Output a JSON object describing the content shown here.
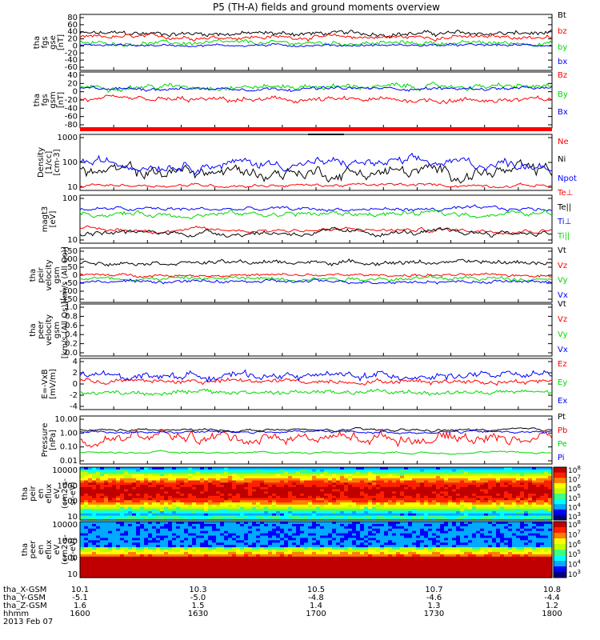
{
  "title": "P5 (TH-A) fields and ground moments overview",
  "colors": {
    "black": "#000000",
    "red": "#ff0000",
    "green": "#00d800",
    "blue": "#0000ff",
    "teal": "#00b070"
  },
  "chart_data": [
    {
      "id": "fgs_bt",
      "type": "line",
      "ylabel": [
        "tha",
        "fgs",
        "gse",
        "[nT]"
      ],
      "yticks": [
        "80",
        "60",
        "40",
        "20",
        "0",
        "-20",
        "-40",
        "-60"
      ],
      "ylim": [
        -60,
        80
      ],
      "series": [
        {
          "name": "Bt",
          "color": "black",
          "base": 35,
          "amp": 8
        },
        {
          "name": "bz",
          "color": "red",
          "base": 25,
          "amp": 7
        },
        {
          "name": "by",
          "color": "green",
          "base": 8,
          "amp": 7
        },
        {
          "name": "bx",
          "color": "blue",
          "base": 2,
          "amp": 4
        }
      ]
    },
    {
      "id": "fgs_gsm",
      "type": "line",
      "ylabel": [
        "tha",
        "fgs",
        "gsm",
        "[nT]"
      ],
      "yticks": [
        "40",
        "20",
        "0",
        "-20",
        "-40",
        "-60",
        "-80"
      ],
      "ylim": [
        -90,
        40
      ],
      "series": [
        {
          "name": "Bz",
          "color": "red",
          "base": -25,
          "amp": 8
        },
        {
          "name": "By",
          "color": "green",
          "base": 10,
          "amp": 8
        },
        {
          "name": "Bx",
          "color": "blue",
          "base": 5,
          "amp": 5
        }
      ]
    },
    {
      "id": "density",
      "type": "line",
      "log": true,
      "ylabel": [
        "Density",
        "[1/cc]",
        "[cm-3]"
      ],
      "yticks": [
        "1000",
        "100",
        "10"
      ],
      "ylim": [
        10,
        1000
      ],
      "series": [
        {
          "name": "Ne",
          "color": "red",
          "base": 12,
          "amp": 0.02
        },
        {
          "name": "Ni",
          "color": "black",
          "base": 40,
          "amp": 0.08
        },
        {
          "name": "Npot",
          "color": "blue",
          "base": 90,
          "amp": 0.06
        }
      ]
    },
    {
      "id": "temp",
      "type": "line",
      "log": true,
      "ylabel": [
        "magt3",
        "[eV]"
      ],
      "yticks": [
        "100",
        "10"
      ],
      "ylim": [
        10,
        1000
      ],
      "series": [
        {
          "name": "Te⊥",
          "color": "red",
          "base": 30,
          "amp": 0.03
        },
        {
          "name": "Te||",
          "color": "black",
          "base": 22,
          "amp": 0.04
        },
        {
          "name": "Ti⊥",
          "color": "blue",
          "base": 300,
          "amp": 0.03
        },
        {
          "name": "Ti||",
          "color": "green",
          "base": 180,
          "amp": 0.04
        }
      ]
    },
    {
      "id": "peir_vel",
      "type": "line",
      "ylabel": [
        "tha",
        "peir",
        "velocity",
        "gsm",
        "[km/s (All Qs)]"
      ],
      "yticks": [
        "150",
        "100",
        "50",
        "0",
        "-50",
        "-100",
        "-150"
      ],
      "ylim": [
        -150,
        150
      ],
      "series": [
        {
          "name": "Vt",
          "color": "black",
          "base": 80,
          "amp": 15
        },
        {
          "name": "Vz",
          "color": "red",
          "base": 0,
          "amp": 10
        },
        {
          "name": "Vy",
          "color": "green",
          "base": -20,
          "amp": 15
        },
        {
          "name": "Vx",
          "color": "blue",
          "base": -40,
          "amp": 12
        }
      ]
    },
    {
      "id": "peer_vel",
      "type": "line",
      "ylabel": [
        "tha",
        "peer",
        "velocity",
        "gsm",
        "[km/s (All Qs)]"
      ],
      "yticks": [
        "1.0",
        "0.8",
        "0.6",
        "0.4",
        "0.2",
        "0.0"
      ],
      "ylim": [
        0,
        1
      ],
      "series": [
        {
          "name": "Vt",
          "color": "black"
        },
        {
          "name": "Vz",
          "color": "red"
        },
        {
          "name": "Vy",
          "color": "green"
        },
        {
          "name": "Vx",
          "color": "blue"
        }
      ]
    },
    {
      "id": "efield",
      "type": "line",
      "ylabel": [
        "E=-VxB",
        "[mV/m]"
      ],
      "yticks": [
        "4",
        "2",
        "0",
        "-2",
        "-4"
      ],
      "ylim": [
        -4,
        4
      ],
      "series": [
        {
          "name": "Ez",
          "color": "red",
          "base": 0.5,
          "amp": 0.5
        },
        {
          "name": "Ey",
          "color": "green",
          "base": -1.5,
          "amp": 0.5
        },
        {
          "name": "Ex",
          "color": "blue",
          "base": 1.5,
          "amp": 0.7
        }
      ]
    },
    {
      "id": "pressure",
      "type": "line",
      "log": true,
      "ylabel": [
        "Pressure",
        "[nPa]"
      ],
      "yticks": [
        "10.00",
        "1.00",
        "0.10",
        "0.01"
      ],
      "ylim": [
        0.01,
        10
      ],
      "series": [
        {
          "name": "Pt",
          "color": "black",
          "base": 1.6,
          "amp": 0.03
        },
        {
          "name": "Pb",
          "color": "red",
          "base": 0.5,
          "amp": 0.12
        },
        {
          "name": "Pe",
          "color": "green",
          "base": 0.04,
          "amp": 0.02
        },
        {
          "name": "Pi",
          "color": "blue",
          "base": 1.2,
          "amp": 0.03
        }
      ]
    },
    {
      "id": "peir_spec",
      "type": "heatmap",
      "ylabel": [
        "tha",
        "peir",
        "en",
        "eflux",
        "eV",
        "(cm2-s-",
        "sr-eV)"
      ],
      "yticks": [
        "10000",
        "1000",
        "100",
        "10"
      ],
      "ylim": [
        10,
        20000
      ],
      "colorbar": {
        "min_exp": 3,
        "max_exp": 8,
        "labels": [
          "10^8",
          "10^7",
          "10^6",
          "10^5",
          "10^4",
          "10^3"
        ]
      }
    },
    {
      "id": "peer_spec",
      "type": "heatmap",
      "ylabel": [
        "tha",
        "peer",
        "en",
        "eflux",
        "eV",
        "(cm2-s-",
        "sr-eV)"
      ],
      "yticks": [
        "10000",
        "1000",
        "100",
        "10"
      ],
      "ylim": [
        10,
        20000
      ],
      "colorbar": {
        "min_exp": 3,
        "max_exp": 8,
        "labels": [
          "10^8",
          "10^7",
          "10^6",
          "10^5",
          "10^4",
          "10^3"
        ]
      }
    }
  ],
  "x_axis": {
    "rows": [
      {
        "label": "tha_X-GSM",
        "values": [
          "10.1",
          "10.3",
          "10.5",
          "10.7",
          "10.8"
        ]
      },
      {
        "label": "tha_Y-GSM",
        "values": [
          "-5.1",
          "-5.0",
          "-4.8",
          "-4.6",
          "-4.4"
        ]
      },
      {
        "label": "tha_Z-GSM",
        "values": [
          "1.6",
          "1.5",
          "1.4",
          "1.3",
          "1.2"
        ]
      },
      {
        "label": "hhmm",
        "values": [
          "1600",
          "1630",
          "1700",
          "1730",
          "1800"
        ]
      }
    ],
    "date": "2013 Feb 07"
  }
}
